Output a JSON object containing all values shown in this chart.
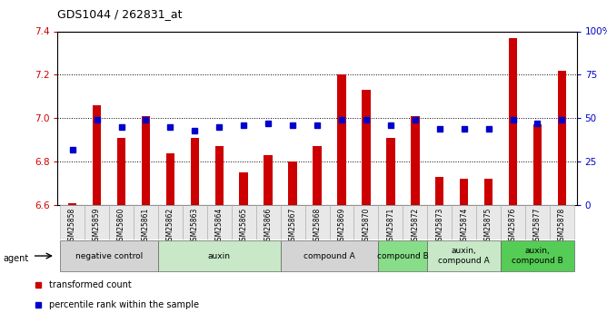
{
  "title": "GDS1044 / 262831_at",
  "samples": [
    "GSM25858",
    "GSM25859",
    "GSM25860",
    "GSM25861",
    "GSM25862",
    "GSM25863",
    "GSM25864",
    "GSM25865",
    "GSM25866",
    "GSM25867",
    "GSM25868",
    "GSM25869",
    "GSM25870",
    "GSM25871",
    "GSM25872",
    "GSM25873",
    "GSM25874",
    "GSM25875",
    "GSM25876",
    "GSM25877",
    "GSM25878"
  ],
  "bar_values": [
    6.61,
    7.06,
    6.91,
    7.01,
    6.84,
    6.91,
    6.87,
    6.75,
    6.83,
    6.8,
    6.87,
    7.2,
    7.13,
    6.91,
    7.01,
    6.73,
    6.72,
    6.72,
    7.37,
    6.97,
    7.22
  ],
  "percentile_values": [
    32,
    49,
    45,
    49,
    45,
    43,
    45,
    46,
    47,
    46,
    46,
    49,
    49,
    46,
    49,
    44,
    44,
    44,
    49,
    47,
    49
  ],
  "ylim_left": [
    6.6,
    7.4
  ],
  "ylim_right": [
    0,
    100
  ],
  "yticks_left": [
    6.6,
    6.8,
    7.0,
    7.2,
    7.4
  ],
  "yticks_right": [
    0,
    25,
    50,
    75,
    100
  ],
  "ytick_labels_right": [
    "0",
    "25",
    "50",
    "75",
    "100%"
  ],
  "bar_color": "#cc0000",
  "percentile_color": "#0000cc",
  "bar_bottom": 6.6,
  "groups": [
    {
      "label": "negative control",
      "start": 0,
      "end": 4,
      "color": "#d4d4d4"
    },
    {
      "label": "auxin",
      "start": 4,
      "end": 9,
      "color": "#c8e8c8"
    },
    {
      "label": "compound A",
      "start": 9,
      "end": 13,
      "color": "#d4d4d4"
    },
    {
      "label": "compound B",
      "start": 13,
      "end": 15,
      "color": "#88dd88"
    },
    {
      "label": "auxin,\ncompound A",
      "start": 15,
      "end": 18,
      "color": "#c8e8c8"
    },
    {
      "label": "auxin,\ncompound B",
      "start": 18,
      "end": 21,
      "color": "#55cc55"
    }
  ],
  "legend_items": [
    {
      "label": "transformed count",
      "color": "#cc0000"
    },
    {
      "label": "percentile rank within the sample",
      "color": "#0000cc"
    }
  ],
  "background_color": "#ffffff",
  "agent_label": "agent"
}
